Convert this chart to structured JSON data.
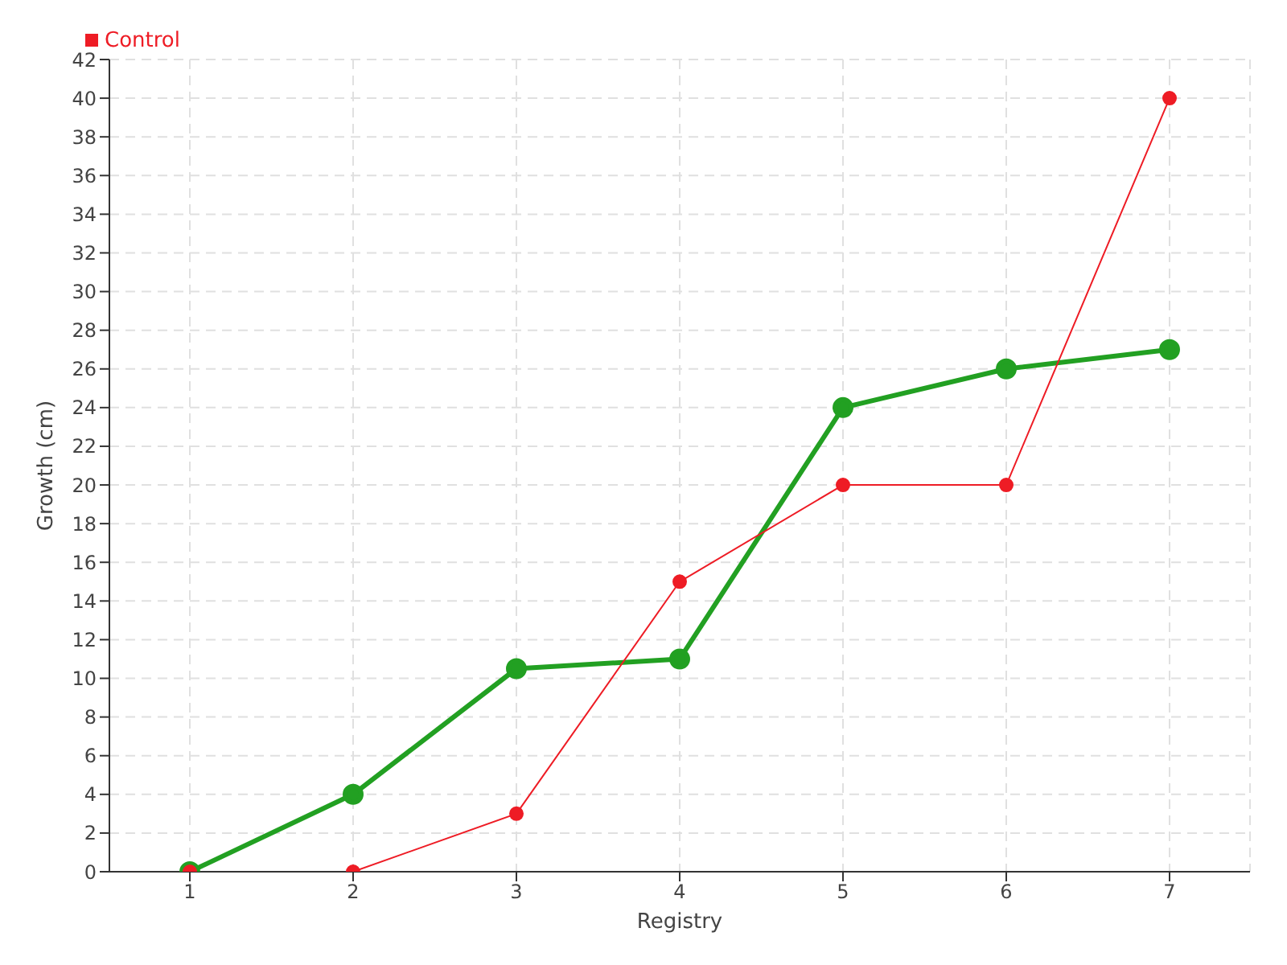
{
  "chart_data": {
    "type": "line",
    "xlabel": "Registry",
    "ylabel": "Growth (cm)",
    "categories": [
      "1",
      "2",
      "3",
      "4",
      "5",
      "6",
      "7"
    ],
    "series": [
      {
        "color": "#22a022",
        "values": [
          0,
          4,
          10.5,
          11,
          24,
          26,
          27
        ]
      },
      {
        "name": "Control",
        "color": "#ee1c25",
        "values": [
          0,
          0,
          3,
          15,
          20,
          20,
          40
        ]
      }
    ],
    "ylim": [
      0,
      42
    ],
    "yticks": [
      0,
      2,
      4,
      6,
      8,
      10,
      12,
      14,
      16,
      18,
      20,
      22,
      24,
      26,
      28,
      30,
      32,
      34,
      36,
      38,
      40,
      42
    ],
    "grid": true,
    "legend": "top left",
    "marker": "circle"
  }
}
